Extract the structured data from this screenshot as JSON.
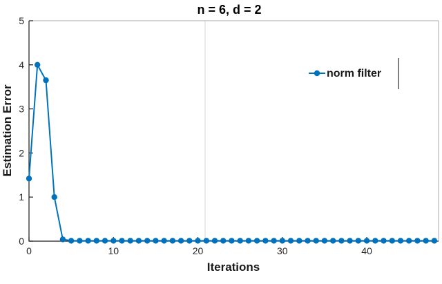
{
  "figure": {
    "background": "#ffffff"
  },
  "chart_data": {
    "type": "line",
    "title": "n = 6, d = 2",
    "xlabel": "Iterations",
    "ylabel": "Estimation Error",
    "xlim": [
      0,
      48.5
    ],
    "ylim": [
      0,
      5
    ],
    "xticks": [
      0,
      10,
      20,
      30,
      40
    ],
    "yticks": [
      0,
      1,
      2,
      3,
      4,
      5
    ],
    "grid": false,
    "legend": {
      "label": "norm filter",
      "position": "upper-right"
    },
    "series": [
      {
        "name": "norm filter",
        "color": "#0072BD",
        "marker": "circle",
        "marker_radius": 4.2,
        "line_width": 2,
        "x": [
          0,
          1,
          2,
          3,
          4,
          5,
          6,
          7,
          8,
          9,
          10,
          11,
          12,
          13,
          14,
          15,
          16,
          17,
          18,
          19,
          20,
          21,
          22,
          23,
          24,
          25,
          26,
          27,
          28,
          29,
          30,
          31,
          32,
          33,
          34,
          35,
          36,
          37,
          38,
          39,
          40,
          41,
          42,
          43,
          44,
          45,
          46,
          47,
          48
        ],
        "y": [
          1.42,
          4.0,
          3.65,
          1.0,
          0.04,
          0.01,
          0.01,
          0.01,
          0.01,
          0.01,
          0.01,
          0.01,
          0.01,
          0.01,
          0.01,
          0.01,
          0.01,
          0.01,
          0.01,
          0.01,
          0.01,
          0.01,
          0.01,
          0.01,
          0.01,
          0.01,
          0.01,
          0.01,
          0.01,
          0.01,
          0.01,
          0.01,
          0.01,
          0.01,
          0.01,
          0.01,
          0.01,
          0.01,
          0.01,
          0.01,
          0.01,
          0.01,
          0.01,
          0.01,
          0.01,
          0.01,
          0.01,
          0.01,
          0.01
        ]
      }
    ]
  }
}
